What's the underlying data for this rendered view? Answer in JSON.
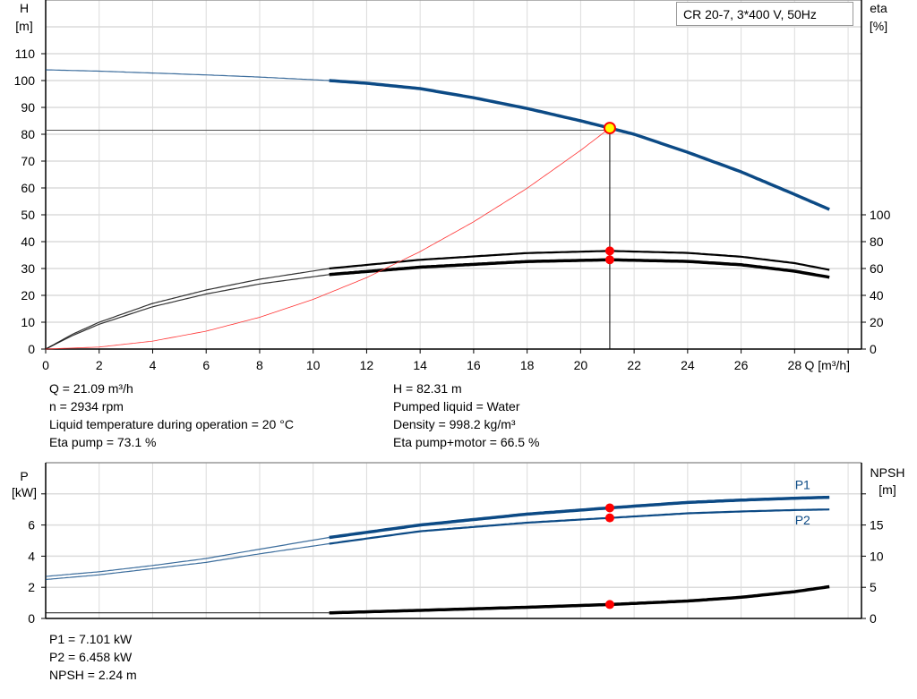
{
  "chart_data": [
    {
      "type": "line",
      "title": "CR 20-7, 3*400 V, 50Hz",
      "xlabel": "Q [m³/h]",
      "ylabel": "H",
      "ylabel_unit": "[m]",
      "y2label": "eta",
      "y2label_unit": "[%]",
      "xlim": [
        0,
        30.5
      ],
      "ylim": [
        0,
        130
      ],
      "y2lim": [
        0,
        260
      ],
      "x_ticks": [
        0,
        2,
        4,
        6,
        8,
        10,
        12,
        14,
        16,
        18,
        20,
        22,
        24,
        26,
        28
      ],
      "y_ticks": [
        0,
        10,
        20,
        30,
        40,
        50,
        60,
        70,
        80,
        90,
        100,
        110
      ],
      "y2_ticks": [
        0,
        20,
        40,
        60,
        80,
        100
      ],
      "grid": true,
      "operating_point": {
        "Q": 21.09,
        "H": 82.31,
        "eta_pump": 73.1,
        "eta_pump_motor": 66.5
      },
      "series": [
        {
          "key": "H",
          "axis": "left",
          "color": "#0c4a85",
          "x": [
            0,
            2,
            4,
            6,
            8,
            10.6,
            12,
            14,
            16,
            18,
            20,
            21.09,
            22,
            24,
            26,
            28,
            29.3
          ],
          "y": [
            104,
            103.5,
            102.8,
            102.1,
            101.3,
            100,
            99,
            97,
            93.6,
            89.6,
            85,
            82.31,
            80,
            73.3,
            66,
            57.6,
            52
          ]
        },
        {
          "key": "eta_pump",
          "axis": "right",
          "color": "#000000",
          "x": [
            0,
            1,
            2,
            4,
            6,
            8,
            10.6,
            14,
            18,
            21.09,
            24,
            26,
            28,
            29.3
          ],
          "y": [
            0,
            11,
            20,
            34,
            44,
            52,
            60,
            66.5,
            71.5,
            73.1,
            71.6,
            68.8,
            64,
            59
          ]
        },
        {
          "key": "eta_pump_motor",
          "axis": "right",
          "color": "#000000",
          "x": [
            0,
            1,
            2,
            4,
            6,
            8,
            10.6,
            14,
            18,
            21.09,
            24,
            26,
            28,
            29.3
          ],
          "y": [
            0,
            10,
            18.5,
            31.5,
            41,
            48.5,
            55.5,
            61,
            65.2,
            66.5,
            65.3,
            62.8,
            58,
            53.5
          ]
        },
        {
          "key": "system_curve",
          "axis": "left",
          "color": "#ff3333",
          "x": [
            0,
            2,
            4,
            6,
            8,
            10,
            12,
            14,
            16,
            18,
            20,
            21.09
          ],
          "y": [
            0,
            0.74,
            2.96,
            6.66,
            11.84,
            18.5,
            26.6,
            36.3,
            47.4,
            59.9,
            74,
            82.31
          ]
        }
      ],
      "thick_from_Q": 10.6
    },
    {
      "type": "line",
      "ylabel": "P",
      "ylabel_unit": "[kW]",
      "y2label": "NPSH",
      "y2label_unit": "[m]",
      "xlim": [
        0,
        30.5
      ],
      "ylim": [
        0,
        10
      ],
      "y2lim": [
        0,
        25
      ],
      "y_ticks": [
        0,
        2,
        4,
        6,
        8
      ],
      "y_tick_labels": [
        "0",
        "2",
        "4",
        "6",
        ""
      ],
      "y2_ticks": [
        0,
        5,
        10,
        15,
        20
      ],
      "y2_tick_labels": [
        "0",
        "5",
        "10",
        "15",
        ""
      ],
      "grid": true,
      "operating_point": {
        "Q": 21.09,
        "P1": 7.101,
        "P2": 6.458,
        "NPSH": 2.24
      },
      "series": [
        {
          "name": "P1",
          "axis": "left",
          "color": "#0c4a85",
          "x": [
            0,
            2,
            4,
            6,
            8,
            10.6,
            14,
            18,
            21.09,
            24,
            26,
            28,
            29.3
          ],
          "y": [
            2.7,
            3.0,
            3.4,
            3.85,
            4.45,
            5.2,
            6.0,
            6.7,
            7.101,
            7.45,
            7.6,
            7.72,
            7.78
          ]
        },
        {
          "name": "P2",
          "axis": "left",
          "color": "#0c4a85",
          "x": [
            0,
            2,
            4,
            6,
            8,
            10.6,
            14,
            18,
            21.09,
            24,
            26,
            28,
            29.3
          ],
          "y": [
            2.5,
            2.8,
            3.2,
            3.6,
            4.15,
            4.8,
            5.6,
            6.15,
            6.458,
            6.75,
            6.87,
            6.96,
            7.0
          ]
        },
        {
          "key": "NPSH",
          "axis": "right",
          "color": "#000000",
          "x": [
            0,
            4,
            8,
            10.6,
            14,
            18,
            21.09,
            24,
            26,
            28,
            29.3
          ],
          "y": [
            0.9,
            0.9,
            0.9,
            0.9,
            1.3,
            1.8,
            2.24,
            2.8,
            3.4,
            4.3,
            5.1
          ]
        }
      ],
      "thick_from_Q": 10.6
    }
  ],
  "info_top_left": [
    "Q = 21.09 m³/h",
    "n = 2934 rpm",
    "Liquid temperature during operation = 20 °C",
    "Eta pump = 73.1 %"
  ],
  "info_top_right": [
    "H = 82.31 m",
    "Pumped liquid = Water",
    "Density = 998.2 kg/m³",
    "Eta pump+motor = 66.5 %"
  ],
  "info_bottom": [
    "P1 = 7.101 kW",
    "P2 = 6.458 kW",
    "NPSH = 2.24 m"
  ]
}
